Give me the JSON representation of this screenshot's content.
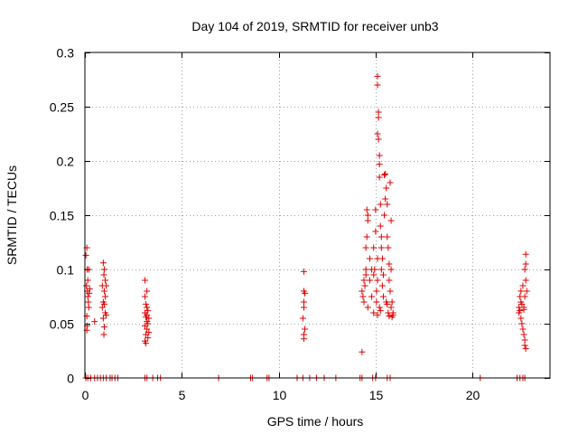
{
  "chart_data": {
    "type": "scatter",
    "title": "Day 104 of 2019, SRMTID for receiver unb3",
    "xlabel": "GPS time / hours",
    "ylabel": "SRMTID / TECUs",
    "xlim": [
      0,
      24
    ],
    "ylim": [
      0,
      0.3
    ],
    "xticks": [
      0,
      5,
      10,
      15,
      20
    ],
    "xtick_labels": [
      "0",
      "5",
      "10",
      "15",
      "20"
    ],
    "yticks": [
      0,
      0.05,
      0.1,
      0.15,
      0.2,
      0.25,
      0.3
    ],
    "ytick_labels": [
      "0",
      "0.05",
      "0.1",
      "0.15",
      "0.2",
      "0.25",
      "0.3"
    ],
    "grid": true,
    "marker": "plus",
    "color": "#e00000",
    "series": [
      {
        "name": "SRMTID",
        "points": [
          [
            0.05,
            0.113
          ],
          [
            0.1,
            0.12
          ],
          [
            0.12,
            0.1
          ],
          [
            0.15,
            0.09
          ],
          [
            0.08,
            0.085
          ],
          [
            0.12,
            0.08
          ],
          [
            0.15,
            0.075
          ],
          [
            0.18,
            0.07
          ],
          [
            0.2,
            0.065
          ],
          [
            0.1,
            0.057
          ],
          [
            0.12,
            0.048
          ],
          [
            0.1,
            0.044
          ],
          [
            0.25,
            0.082
          ],
          [
            0.22,
            0.078
          ],
          [
            0.2,
            0.1
          ],
          [
            0.5,
            0.052
          ],
          [
            0.95,
            0.106
          ],
          [
            1.0,
            0.1
          ],
          [
            0.98,
            0.095
          ],
          [
            1.05,
            0.09
          ],
          [
            0.9,
            0.085
          ],
          [
            1.0,
            0.08
          ],
          [
            1.05,
            0.075
          ],
          [
            0.95,
            0.07
          ],
          [
            1.0,
            0.068
          ],
          [
            0.9,
            0.065
          ],
          [
            1.05,
            0.06
          ],
          [
            1.1,
            0.058
          ],
          [
            0.95,
            0.055
          ],
          [
            1.0,
            0.047
          ],
          [
            0.98,
            0.04
          ],
          [
            1.1,
            0.085
          ],
          [
            3.1,
            0.09
          ],
          [
            3.2,
            0.08
          ],
          [
            3.1,
            0.075
          ],
          [
            3.15,
            0.068
          ],
          [
            3.2,
            0.065
          ],
          [
            3.25,
            0.062
          ],
          [
            3.1,
            0.06
          ],
          [
            3.2,
            0.058
          ],
          [
            3.15,
            0.056
          ],
          [
            3.3,
            0.055
          ],
          [
            3.2,
            0.052
          ],
          [
            3.25,
            0.05
          ],
          [
            3.1,
            0.048
          ],
          [
            3.2,
            0.045
          ],
          [
            3.3,
            0.042
          ],
          [
            3.15,
            0.04
          ],
          [
            3.25,
            0.037
          ],
          [
            3.1,
            0.034
          ],
          [
            3.15,
            0.032
          ],
          [
            11.3,
            0.098
          ],
          [
            11.3,
            0.08
          ],
          [
            11.35,
            0.078
          ],
          [
            11.3,
            0.07
          ],
          [
            11.3,
            0.065
          ],
          [
            11.25,
            0.055
          ],
          [
            11.35,
            0.045
          ],
          [
            11.3,
            0.04
          ],
          [
            11.3,
            0.036
          ],
          [
            14.3,
            0.024
          ],
          [
            14.4,
            0.09
          ],
          [
            14.35,
            0.075
          ],
          [
            14.4,
            0.07
          ],
          [
            14.3,
            0.08
          ],
          [
            14.5,
            0.095
          ],
          [
            14.5,
            0.12
          ],
          [
            14.55,
            0.13
          ],
          [
            14.6,
            0.145
          ],
          [
            14.55,
            0.155
          ],
          [
            14.6,
            0.15
          ],
          [
            14.5,
            0.1
          ],
          [
            14.45,
            0.085
          ],
          [
            14.6,
            0.065
          ],
          [
            14.7,
            0.11
          ],
          [
            14.7,
            0.09
          ],
          [
            14.8,
            0.1
          ],
          [
            14.8,
            0.075
          ],
          [
            14.9,
            0.06
          ],
          [
            14.9,
            0.095
          ],
          [
            14.95,
            0.1
          ],
          [
            14.9,
            0.12
          ],
          [
            15.0,
            0.135
          ],
          [
            15.0,
            0.155
          ],
          [
            15.05,
            0.08
          ],
          [
            15.1,
            0.09
          ],
          [
            15.1,
            0.11
          ],
          [
            15.1,
            0.278
          ],
          [
            15.1,
            0.27
          ],
          [
            15.15,
            0.245
          ],
          [
            15.15,
            0.24
          ],
          [
            15.1,
            0.225
          ],
          [
            15.15,
            0.22
          ],
          [
            15.2,
            0.205
          ],
          [
            15.2,
            0.197
          ],
          [
            15.2,
            0.185
          ],
          [
            15.25,
            0.16
          ],
          [
            15.25,
            0.14
          ],
          [
            15.3,
            0.13
          ],
          [
            15.3,
            0.12
          ],
          [
            15.35,
            0.11
          ],
          [
            15.3,
            0.1
          ],
          [
            15.4,
            0.095
          ],
          [
            15.35,
            0.085
          ],
          [
            15.4,
            0.075
          ],
          [
            15.45,
            0.15
          ],
          [
            15.5,
            0.165
          ],
          [
            15.45,
            0.187
          ],
          [
            15.5,
            0.188
          ],
          [
            15.55,
            0.175
          ],
          [
            15.6,
            0.16
          ],
          [
            15.6,
            0.13
          ],
          [
            15.65,
            0.12
          ],
          [
            15.7,
            0.105
          ],
          [
            15.7,
            0.09
          ],
          [
            15.75,
            0.18
          ],
          [
            15.8,
            0.145
          ],
          [
            15.8,
            0.1
          ],
          [
            15.75,
            0.08
          ],
          [
            15.85,
            0.07
          ],
          [
            15.8,
            0.065
          ],
          [
            15.9,
            0.06
          ],
          [
            15.85,
            0.056
          ],
          [
            15.9,
            0.058
          ],
          [
            15.55,
            0.07
          ],
          [
            15.6,
            0.068
          ],
          [
            15.65,
            0.06
          ],
          [
            15.7,
            0.057
          ],
          [
            15.2,
            0.065
          ],
          [
            15.25,
            0.062
          ],
          [
            15.05,
            0.07
          ],
          [
            15.1,
            0.058
          ],
          [
            22.4,
            0.065
          ],
          [
            22.5,
            0.08
          ],
          [
            22.45,
            0.075
          ],
          [
            22.4,
            0.06
          ],
          [
            22.5,
            0.055
          ],
          [
            22.55,
            0.05
          ],
          [
            22.45,
            0.062
          ],
          [
            22.5,
            0.07
          ],
          [
            22.55,
            0.068
          ],
          [
            22.6,
            0.045
          ],
          [
            22.65,
            0.04
          ],
          [
            22.7,
            0.035
          ],
          [
            22.7,
            0.03
          ],
          [
            22.75,
            0.027
          ],
          [
            22.6,
            0.085
          ],
          [
            22.65,
            0.065
          ],
          [
            22.7,
            0.075
          ],
          [
            22.75,
            0.09
          ],
          [
            22.7,
            0.1
          ],
          [
            22.75,
            0.105
          ],
          [
            22.75,
            0.114
          ],
          [
            22.8,
            0.08
          ],
          [
            22.65,
            0.063
          ]
        ],
        "zero_points": [
          0.05,
          0.15,
          0.3,
          0.5,
          0.65,
          0.8,
          0.95,
          1.1,
          1.3,
          1.4,
          1.55,
          1.7,
          3.1,
          3.2,
          3.5,
          3.75,
          3.9,
          6.9,
          8.55,
          8.65,
          9.4,
          9.5,
          10.95,
          11.25,
          11.6,
          11.95,
          12.35,
          12.95,
          14.2,
          14.3,
          14.85,
          15.0,
          15.6,
          15.75,
          20.4,
          22.3,
          22.45,
          22.6,
          22.7
        ]
      }
    ]
  }
}
